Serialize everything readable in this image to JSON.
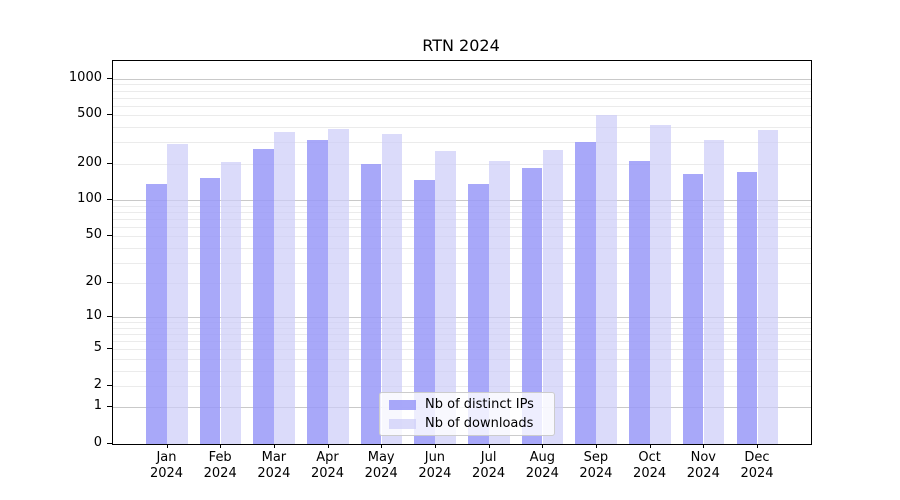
{
  "chart_data": {
    "type": "bar",
    "title": "RTN 2024",
    "categories": [
      "Jan 2024",
      "Feb 2024",
      "Mar 2024",
      "Apr 2024",
      "May 2024",
      "Jun 2024",
      "Jul 2024",
      "Aug 2024",
      "Sep 2024",
      "Oct 2024",
      "Nov 2024",
      "Dec 2024"
    ],
    "series": [
      {
        "name": "Nb of distinct IPs",
        "values": [
          135,
          153,
          264,
          315,
          198,
          148,
          136,
          185,
          304,
          209,
          163,
          170
        ]
      },
      {
        "name": "Nb of downloads",
        "values": [
          291,
          205,
          368,
          388,
          351,
          256,
          211,
          260,
          505,
          418,
          315,
          380
        ]
      }
    ],
    "xlabel": "",
    "ylabel": "",
    "yscale": "log(1+v) symlog-like",
    "ylim": [
      0,
      1400
    ],
    "yticks_labeled": [
      0,
      1,
      2,
      5,
      10,
      20,
      50,
      100,
      200,
      500,
      1000
    ],
    "grid_major_values": [
      1,
      10,
      100,
      1000
    ],
    "grid_minor_values": [
      2,
      3,
      4,
      5,
      6,
      7,
      8,
      9,
      20,
      30,
      40,
      50,
      60,
      70,
      80,
      90,
      200,
      300,
      400,
      500,
      600,
      700,
      800,
      900
    ],
    "grid": "horizontal major+minor",
    "legend_position": "lower center"
  },
  "colors": {
    "ips_bar": "#9999f8",
    "ips_alpha": 0.85,
    "downloads_bar": "#ccccf8",
    "downloads_alpha": 0.7,
    "grid_major": "#c9c9c9",
    "grid_minor": "#ebebeb",
    "axis": "#000000",
    "text": "#000000",
    "legend_border": "#cccccc",
    "legend_bg": "rgba(255,255,255,0.8)"
  }
}
